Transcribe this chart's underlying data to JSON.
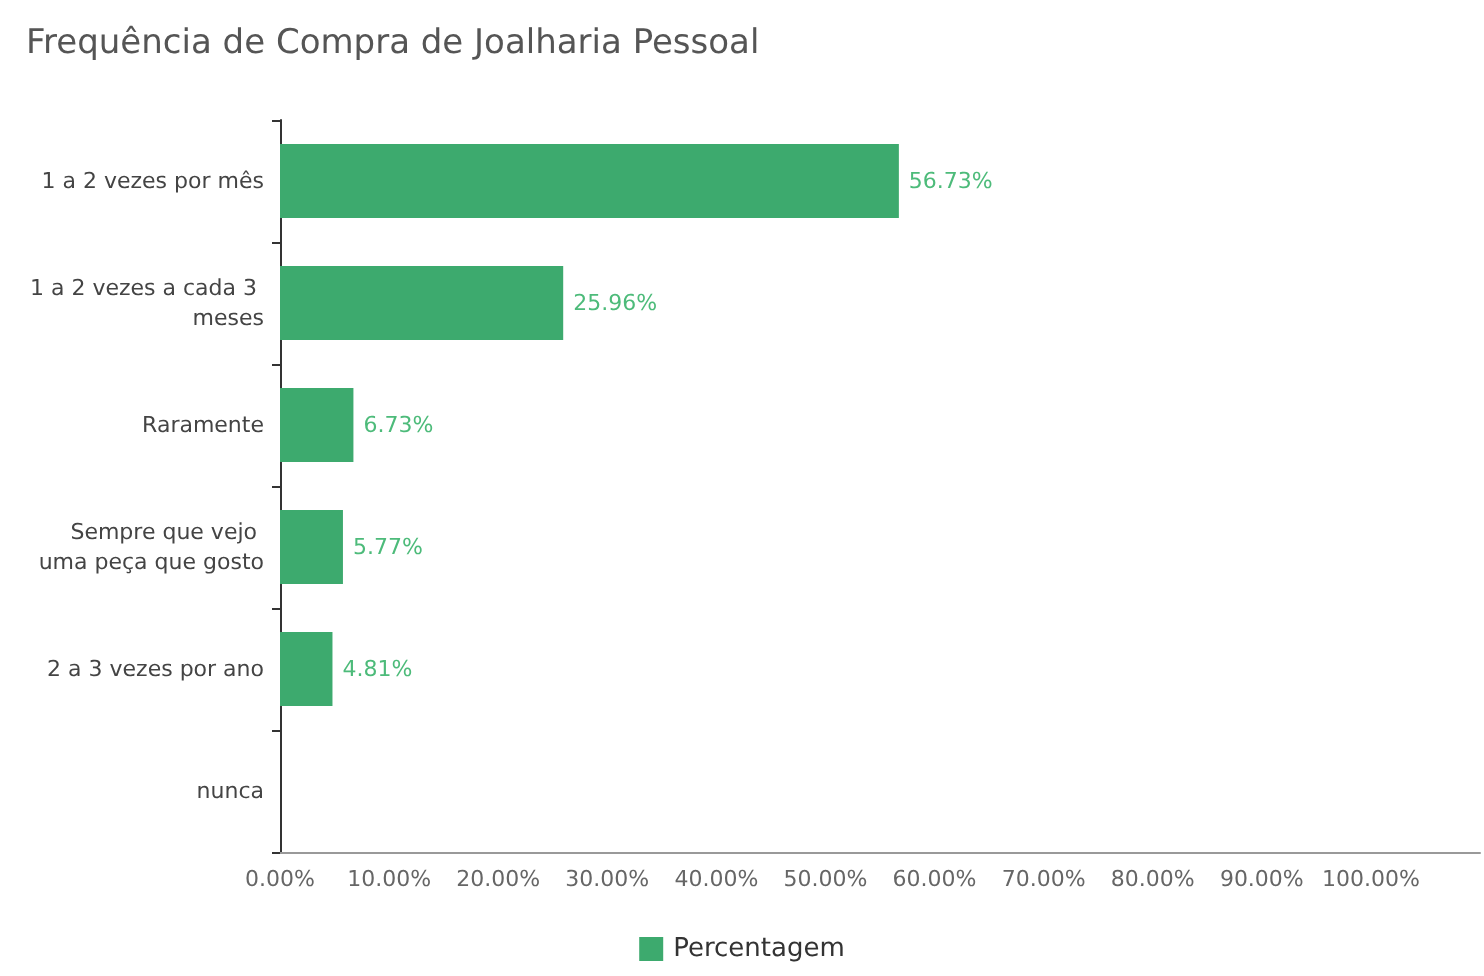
{
  "chart_data": {
    "type": "bar",
    "orientation": "horizontal",
    "title": "Frequência de Compra de Joalharia Pessoal",
    "categories": [
      "1 a 2 vezes por mês",
      "1 a 2 vezes a cada 3 meses",
      "Raramente",
      "Sempre que vejo uma peça que gosto",
      "2 a 3 vezes por ano",
      "nunca"
    ],
    "series": [
      {
        "name": "Percentagem",
        "color": "#3daa6e",
        "values": [
          56.73,
          25.96,
          6.73,
          5.77,
          4.81,
          0
        ]
      }
    ],
    "value_labels": [
      "56.73%",
      "25.96%",
      "6.73%",
      "5.77%",
      "4.81%",
      null
    ],
    "xlim": [
      0,
      110
    ],
    "xticks": [
      {
        "value": 0,
        "label": "0.00%"
      },
      {
        "value": 10,
        "label": "10.00%"
      },
      {
        "value": 20,
        "label": "20.00%"
      },
      {
        "value": 30,
        "label": "30.00%"
      },
      {
        "value": 40,
        "label": "40.00%"
      },
      {
        "value": 50,
        "label": "50.00%"
      },
      {
        "value": 60,
        "label": "60.00%"
      },
      {
        "value": 70,
        "label": "70.00%"
      },
      {
        "value": 80,
        "label": "80.00%"
      },
      {
        "value": 90,
        "label": "90.00%"
      },
      {
        "value": 100,
        "label": "100.00%"
      }
    ],
    "grid": false,
    "legend": "bottom"
  }
}
